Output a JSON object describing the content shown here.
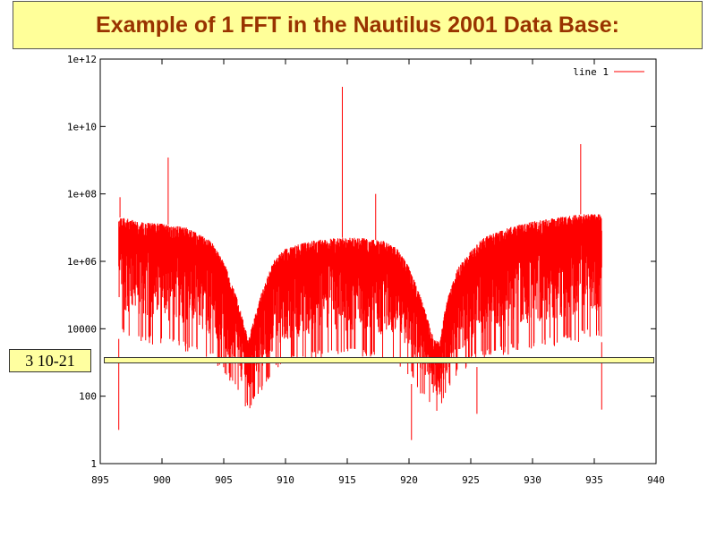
{
  "title": "Example of 1 FFT in the Nautilus 2001 Data Base:",
  "threshold_label": "3 10-21",
  "colors": {
    "series": "#ff0000",
    "title_bg": "#ffff99",
    "title_text": "#993300",
    "threshold_bg": "#ffffa0"
  },
  "chart_data": {
    "type": "line",
    "title": "",
    "xlabel": "",
    "ylabel": "",
    "xlim": [
      895,
      940
    ],
    "ylim": [
      1,
      1000000000000.0
    ],
    "yscale": "log",
    "grid": false,
    "legend_position": "top-right",
    "x_ticks": [
      895,
      900,
      905,
      910,
      915,
      920,
      925,
      930,
      935,
      940
    ],
    "x_tick_labels": [
      "895",
      "900",
      "905",
      "910",
      "915",
      "920",
      "925",
      "930",
      "935",
      "940"
    ],
    "y_ticks": [
      1,
      100,
      10000,
      1000000,
      100000000,
      10000000000,
      1000000000000
    ],
    "y_tick_labels": [
      "1",
      "100",
      "10000",
      "1e+06",
      "1e+08",
      "1e+10",
      "1e+12"
    ],
    "series": [
      {
        "name": "line 1",
        "x_range": [
          896.5,
          935.6
        ],
        "envelope": {
          "x": [
            896.5,
            897,
            898,
            900,
            902,
            904,
            905,
            906,
            907,
            908,
            909,
            910,
            912,
            914,
            916,
            918,
            919,
            920,
            921,
            922,
            922.5,
            923,
            924,
            925,
            926,
            928,
            930,
            932,
            934,
            935.5
          ],
          "upper": [
            20000000.0,
            20000000.0,
            15000000.0,
            13000000.0,
            10000000.0,
            4000000.0,
            1000000.0,
            100000.0,
            5000.0,
            100000.0,
            1000000.0,
            2500000.0,
            4000000.0,
            5000000.0,
            5000000.0,
            4000000.0,
            2500000.0,
            700000.0,
            80000.0,
            5000.0,
            4000.0,
            60000.0,
            700000.0,
            2000000.0,
            5000000.0,
            10000000.0,
            15000000.0,
            20000000.0,
            25000000.0,
            25000000.0
          ],
          "lower": [
            5000.0,
            4000.0,
            3000.0,
            2000.0,
            1500.0,
            800,
            400,
            100,
            30,
            100,
            300,
            600,
            800,
            1000,
            900,
            800,
            500,
            300,
            80,
            30,
            30,
            80,
            300,
            600,
            900,
            1200,
            1500,
            2000.0,
            3000.0,
            4000.0
          ]
        },
        "spikes": [
          {
            "x": 896.6,
            "y": 80000000.0
          },
          {
            "x": 900.5,
            "y": 1200000000.0
          },
          {
            "x": 914.6,
            "y": 150000000000.0
          },
          {
            "x": 917.3,
            "y": 100000000.0
          },
          {
            "x": 933.9,
            "y": 3000000000.0
          },
          {
            "x": 896.5,
            "y": 10,
            "down": true
          },
          {
            "x": 920.2,
            "y": 5,
            "down": true
          },
          {
            "x": 925.5,
            "y": 30,
            "down": true
          },
          {
            "x": 935.6,
            "y": 40,
            "down": true
          }
        ]
      }
    ]
  }
}
